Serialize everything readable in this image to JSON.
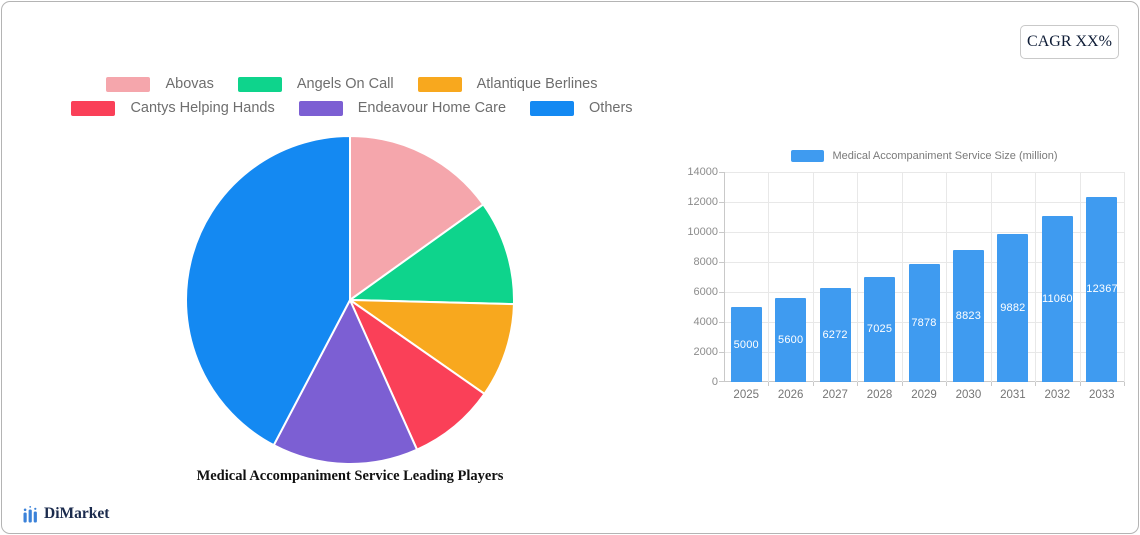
{
  "header": {
    "cagr_badge": "CAGR XX%"
  },
  "brand": {
    "name": "DiMarket",
    "logo_color": "#3b82d9",
    "name_color": "#1b2b4d"
  },
  "colors": {
    "card_border": "#b4b4b4",
    "legend_text": "#6e6e6e",
    "axis_text": "#8c8c8c",
    "grid_line": "#e8e8e8",
    "axis_line": "#c9c9c9"
  },
  "chart_data": [
    {
      "type": "pie",
      "title": "Medical Accompaniment Service Leading Players",
      "legend_position": "top",
      "start_angle": "12-oclock",
      "direction": "clockwise",
      "slices": [
        {
          "label": "Abovas",
          "value_pct": 15.1,
          "color": "#f5a6ac"
        },
        {
          "label": "Angels On Call",
          "value_pct": 10.3,
          "color": "#0ed48c"
        },
        {
          "label": "Atlantique Berlines",
          "value_pct": 9.3,
          "color": "#f8a81e"
        },
        {
          "label": "Cantys Helping Hands",
          "value_pct": 8.6,
          "color": "#fa4058"
        },
        {
          "label": "Endeavour Home Care",
          "value_pct": 14.4,
          "color": "#7c5fd3"
        },
        {
          "label": "Others",
          "value_pct": 42.3,
          "color": "#1489f2"
        }
      ],
      "legend_rows": [
        [
          "Abovas",
          "Angels On Call",
          "Atlantique Berlines"
        ],
        [
          "Cantys Helping Hands",
          "Endeavour Home Care",
          "Others"
        ]
      ]
    },
    {
      "type": "bar",
      "legend": "Medical Accompaniment Service Size (million)",
      "categories": [
        "2025",
        "2026",
        "2027",
        "2028",
        "2029",
        "2030",
        "2031",
        "2032",
        "2033"
      ],
      "values": [
        5000,
        5600,
        6272,
        7025,
        7878,
        8823,
        9882,
        11060,
        12367
      ],
      "bar_color": "#3f9bf0",
      "value_label_color": "#ffffff",
      "xlabel": "",
      "ylabel": "",
      "ylim": [
        0,
        14000
      ],
      "yticks": [
        0,
        2000,
        4000,
        6000,
        8000,
        10000,
        12000,
        14000
      ],
      "grid": true,
      "legend_position": "top"
    }
  ]
}
